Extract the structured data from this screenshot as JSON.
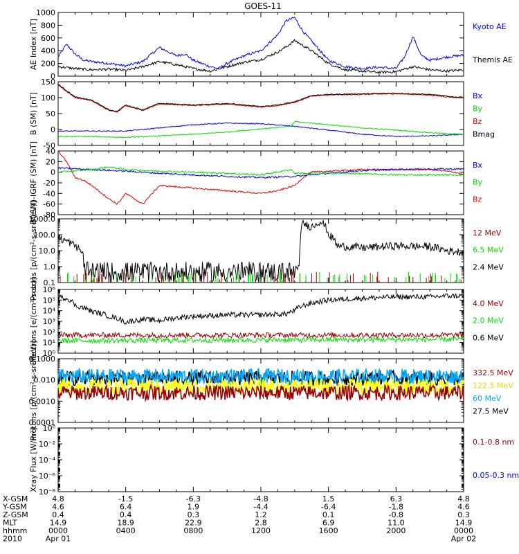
{
  "title": "GOES-11",
  "colors": {
    "black": "#000000",
    "red": "#dd0000",
    "darkred": "#990000",
    "green": "#00dd00",
    "blue": "#0000dd",
    "yellow": "#ffff00",
    "cyan": "#00aaff"
  },
  "x_axis": {
    "year": "2010",
    "start_date": "Apr 01",
    "end_date": "Apr 02",
    "rows": [
      {
        "label": "X-GSM",
        "values": [
          "4.8",
          "-1.5",
          "-6.3",
          "-4.8",
          "1.5",
          "6.3",
          "4.8"
        ]
      },
      {
        "label": "Y-GSM",
        "values": [
          "4.6",
          "6.4",
          "1.9",
          "-4.4",
          "-6.4",
          "-1.8",
          "4.6"
        ]
      },
      {
        "label": "Z-GSM",
        "values": [
          "0.4",
          "0.4",
          "0.3",
          "1.2",
          "0.1",
          "-0.8",
          "0.3"
        ]
      },
      {
        "label": "MLT",
        "values": [
          "14.9",
          "18.9",
          "22.9",
          "2.8",
          "6.9",
          "11.0",
          "14.9"
        ]
      },
      {
        "label": "hhmm",
        "values": [
          "0000",
          "0400",
          "0800",
          "1200",
          "1600",
          "2000",
          "0000"
        ]
      }
    ]
  },
  "chart_data": [
    {
      "type": "line",
      "ylabel": "AE Index [nT]",
      "ylim": [
        0,
        1000
      ],
      "yticks": [
        "0",
        "200",
        "400",
        "600",
        "800",
        "1000"
      ],
      "legend": [
        {
          "name": "Kyoto AE",
          "color": "#0000dd"
        },
        {
          "name": "Themis AE",
          "color": "#000000"
        }
      ],
      "series": [
        {
          "name": "Kyoto AE",
          "color": "#0000dd",
          "x": [
            0,
            0.5,
            1,
            1.5,
            2,
            3,
            4,
            5,
            6,
            7,
            7.5,
            8,
            9,
            9.5,
            10,
            11,
            12,
            13,
            13.5,
            14,
            14.5,
            15,
            16,
            17,
            18,
            19,
            20,
            20.5,
            21,
            21.5,
            22,
            23,
            24
          ],
          "y": [
            300,
            500,
            350,
            250,
            230,
            200,
            160,
            230,
            450,
            320,
            350,
            250,
            150,
            120,
            200,
            320,
            400,
            650,
            870,
            920,
            700,
            550,
            250,
            150,
            120,
            140,
            120,
            300,
            620,
            320,
            250,
            300,
            330
          ]
        },
        {
          "name": "Themis AE",
          "color": "#000000",
          "x": [
            0,
            1,
            2,
            3,
            4,
            5,
            6,
            7,
            8,
            9,
            10,
            11,
            12,
            13,
            13.5,
            14,
            15,
            16,
            17,
            18,
            19,
            20,
            21,
            22,
            23,
            24
          ],
          "y": [
            150,
            120,
            100,
            110,
            90,
            150,
            230,
            180,
            120,
            80,
            150,
            220,
            260,
            380,
            460,
            560,
            400,
            200,
            100,
            80,
            60,
            70,
            150,
            100,
            80,
            100
          ]
        }
      ]
    },
    {
      "type": "line",
      "ylabel": "B (SM) [nT]",
      "ylim": [
        -50,
        150
      ],
      "yticks": [
        "-50",
        "0",
        "50",
        "100",
        "150"
      ],
      "legend": [
        {
          "name": "Bx",
          "color": "#0000dd"
        },
        {
          "name": "By",
          "color": "#00dd00"
        },
        {
          "name": "Bz",
          "color": "#dd0000"
        },
        {
          "name": "Bmag",
          "color": "#000000"
        }
      ],
      "series": [
        {
          "name": "Bz",
          "color": "#dd0000",
          "x": [
            0,
            1,
            2,
            3,
            3.5,
            4,
            5,
            6,
            8,
            10,
            12,
            13,
            14,
            15,
            16,
            18,
            20,
            22,
            23.5,
            24
          ],
          "y": [
            140,
            100,
            90,
            60,
            55,
            75,
            60,
            80,
            75,
            80,
            70,
            75,
            85,
            105,
            108,
            110,
            112,
            108,
            100,
            100
          ]
        },
        {
          "name": "Bmag",
          "color": "#000000",
          "x": [
            0,
            1,
            2,
            3,
            3.5,
            4,
            5,
            6,
            8,
            10,
            12,
            13,
            14,
            15,
            16,
            18,
            20,
            22,
            23.5,
            24
          ],
          "y": [
            142,
            102,
            92,
            62,
            57,
            77,
            62,
            82,
            77,
            82,
            72,
            77,
            87,
            107,
            110,
            112,
            114,
            110,
            102,
            102
          ]
        },
        {
          "name": "Bx",
          "color": "#0000dd",
          "x": [
            0,
            2,
            4,
            6,
            8,
            10,
            12,
            14,
            16,
            18,
            20,
            22,
            24
          ],
          "y": [
            -5,
            -5,
            -5,
            5,
            15,
            20,
            18,
            10,
            -2,
            -15,
            -22,
            -20,
            -15
          ]
        },
        {
          "name": "By",
          "color": "#00dd00",
          "x": [
            0,
            2,
            4,
            6,
            8,
            10,
            12,
            13.8,
            14,
            16,
            18,
            20,
            22,
            24
          ],
          "y": [
            -22,
            -22,
            -25,
            -20,
            -15,
            -8,
            2,
            10,
            25,
            15,
            5,
            -2,
            -10,
            -15
          ]
        }
      ]
    },
    {
      "type": "line",
      "ylabel": "B (SM)-IGRF (SM) [nT]",
      "ylim": [
        -80,
        40
      ],
      "yticks": [
        "-80",
        "-60",
        "-40",
        "-20",
        "0",
        "20",
        "40"
      ],
      "legend": [
        {
          "name": "Bx",
          "color": "#0000dd"
        },
        {
          "name": "By",
          "color": "#00dd00"
        },
        {
          "name": "Bz",
          "color": "#dd0000"
        }
      ],
      "series": [
        {
          "name": "Bz",
          "color": "#dd0000",
          "x": [
            0,
            0.5,
            1,
            1.5,
            2,
            3,
            3.5,
            4,
            5,
            6,
            8,
            10,
            12,
            13,
            14,
            14.5,
            15,
            16,
            18,
            20,
            22,
            23.5,
            24
          ],
          "y": [
            40,
            20,
            -10,
            -15,
            -25,
            -50,
            -60,
            -40,
            -60,
            -25,
            -30,
            -35,
            -40,
            -35,
            -25,
            -10,
            0,
            2,
            5,
            5,
            5,
            0,
            -5
          ]
        },
        {
          "name": "Bx",
          "color": "#0000dd",
          "x": [
            0,
            2,
            4,
            6,
            8,
            10,
            12,
            14,
            16,
            18,
            20,
            22,
            24
          ],
          "y": [
            8,
            5,
            2,
            -2,
            -5,
            -8,
            -10,
            -8,
            -2,
            3,
            5,
            6,
            6
          ]
        },
        {
          "name": "By",
          "color": "#00dd00",
          "x": [
            0,
            2,
            3,
            4,
            6,
            8,
            10,
            12,
            13.8,
            14,
            16,
            18,
            20,
            22,
            24
          ],
          "y": [
            0,
            5,
            10,
            5,
            2,
            0,
            -2,
            -5,
            5,
            -2,
            -2,
            -3,
            -5,
            -5,
            -5
          ]
        }
      ]
    },
    {
      "type": "line",
      "yscale": "log",
      "ylabel": "Protons [p/(cm²-s-sr-MeV)]",
      "ylim": [
        0.1,
        1000
      ],
      "yticks": [
        "0.1",
        "1.0",
        "10.0",
        "100.0",
        "1000.0"
      ],
      "legend": [
        {
          "name": "12 MeV",
          "color": "#990000"
        },
        {
          "name": "6.5 MeV",
          "color": "#00dd00"
        },
        {
          "name": "2.4 MeV",
          "color": "#000000"
        }
      ],
      "series": [
        {
          "name": "2.4 MeV",
          "color": "#000000",
          "x": [
            0,
            0.5,
            1,
            1.5,
            2,
            4,
            8,
            12,
            14.3,
            14.5,
            15,
            15.5,
            16,
            16.5,
            18,
            20,
            22,
            23,
            24
          ],
          "y": [
            60,
            40,
            20,
            5,
            1,
            0.5,
            0.5,
            0.5,
            0.5,
            500,
            300,
            700,
            100,
            20,
            15,
            20,
            18,
            10,
            8
          ]
        }
      ]
    },
    {
      "type": "line",
      "yscale": "log",
      "ylabel": "Electrons [e/(cm²-s-sr)]",
      "ylim": [
        1,
        1000000
      ],
      "yticks": [
        "10⁰",
        "10¹",
        "10²",
        "10³",
        "10⁴",
        "10⁵",
        "10⁶"
      ],
      "legend": [
        {
          "name": "4.0 MeV",
          "color": "#990000"
        },
        {
          "name": "2.0 MeV",
          "color": "#00dd00"
        },
        {
          "name": "0.6 MeV",
          "color": "#000000"
        }
      ],
      "series": [
        {
          "name": "0.6 MeV",
          "color": "#000000",
          "x": [
            0,
            0.5,
            1,
            2,
            3,
            4,
            5,
            6,
            8,
            10,
            12,
            13.5,
            14,
            15,
            16,
            18,
            20,
            22,
            23,
            24
          ],
          "y": [
            200000,
            150000,
            30000,
            8000,
            3000,
            800,
            1500,
            1200,
            3000,
            4000,
            4000,
            5000,
            10000,
            50000,
            100000,
            150000,
            200000,
            200000,
            250000,
            250000
          ]
        },
        {
          "name": "4.0 MeV",
          "color": "#990000",
          "x": [
            0,
            24
          ],
          "y": [
            50,
            50
          ]
        },
        {
          "name": "2.0 MeV",
          "color": "#00dd00",
          "x": [
            0,
            24
          ],
          "y": [
            15,
            20
          ]
        }
      ]
    },
    {
      "type": "line",
      "yscale": "log",
      "ylabel": "Protons [p/(cm²-s-sr-MeV)]",
      "ylim": [
        0.0001,
        0.1
      ],
      "yticks": [
        "0.0001",
        "0.0010",
        "0.010",
        "0.1000"
      ],
      "legend": [
        {
          "name": "332.5 MeV",
          "color": "#990000"
        },
        {
          "name": "122.5 MeV",
          "color": "#ffff00"
        },
        {
          "name": "60 MeV",
          "color": "#00aaff"
        },
        {
          "name": "27.5 MeV",
          "color": "#000000"
        }
      ],
      "series": [
        {
          "name": "27.5 MeV",
          "color": "#000000",
          "x": [
            0,
            24
          ],
          "y": [
            0.012,
            0.012
          ]
        },
        {
          "name": "60 MeV",
          "color": "#00aaff",
          "x": [
            0,
            24
          ],
          "y": [
            0.015,
            0.015
          ]
        },
        {
          "name": "122.5 MeV",
          "color": "#ffff00",
          "x": [
            0,
            24
          ],
          "y": [
            0.005,
            0.005
          ]
        },
        {
          "name": "332.5 MeV",
          "color": "#990000",
          "x": [
            0,
            24
          ],
          "y": [
            0.0025,
            0.0025
          ]
        }
      ]
    },
    {
      "type": "line",
      "yscale": "log",
      "ylabel": "Xray Flux [W/m²]",
      "ylim": [
        1e-08,
        1
      ],
      "yticks": [
        "10⁻⁸",
        "10⁻⁶",
        "10⁻⁴",
        "10⁻²",
        "10⁰"
      ],
      "legend": [
        {
          "name": "0.1-0.8 nm",
          "color": "#990000"
        },
        {
          "name": "0.05-0.3 nm",
          "color": "#0000dd"
        }
      ],
      "series": []
    }
  ]
}
